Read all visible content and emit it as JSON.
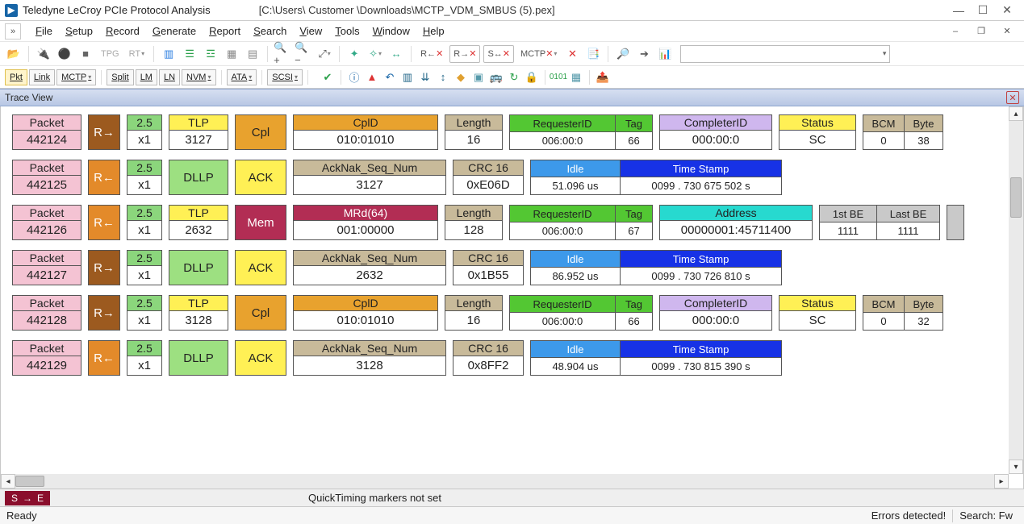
{
  "window": {
    "app_title": "Teledyne LeCroy PCIe Protocol Analysis",
    "file_path": "[C:\\Users\\ Customer \\Downloads\\MCTP_VDM_SMBUS (5).pex]"
  },
  "menus": [
    "File",
    "Setup",
    "Record",
    "Generate",
    "Report",
    "Search",
    "View",
    "Tools",
    "Window",
    "Help"
  ],
  "view_selectors": {
    "group1": [
      "Pkt",
      "Link",
      "MCTP"
    ],
    "group2": [
      "Split",
      "LM",
      "LN",
      "NVM"
    ],
    "group3": [
      "ATA"
    ],
    "group4": [
      "SCSI"
    ]
  },
  "trace_label": "Trace View",
  "colors": {
    "packet_pink": "#f4c3d3",
    "dir_orange": "#e38a2a",
    "dir_brown": "#9c5a1f",
    "gen_green": "#8bd67c",
    "tlp_yellow": "#fff055",
    "dllp_green": "#9de081",
    "ack_yellow": "#fff055",
    "cpl_orange": "#e8a22e",
    "hdr_orange": "#e8a22e",
    "hdr_tan": "#c8ba9a",
    "crc_tan": "#c8ba9a",
    "req_green": "#53c733",
    "tag_green": "#53c733",
    "completer_purple": "#cfb7ee",
    "status_yellow": "#fff055",
    "bcm_tan": "#c8ba9a",
    "idle_blue": "#3d99ea",
    "timestamp_blue": "#1732e6",
    "mem_maroon": "#b22d54",
    "mrd_maroon": "#b22d54",
    "address_teal": "#27d9cf",
    "be_gray": "#c9c9c9"
  },
  "packets": [
    {
      "num": "442124",
      "dir": "R→",
      "dir_color_key": "dir_brown",
      "gen": "2.5",
      "lanes": "x1",
      "ptype": "TLP",
      "ptype_color_key": "tlp_yellow",
      "seq": "3127",
      "cat": "Cpl",
      "cat_color_key": "cpl_orange",
      "fields": [
        {
          "kind": "hv",
          "hdr": "CplD",
          "hdr_color_key": "hdr_orange",
          "val": "010:01010",
          "w": 180
        },
        {
          "kind": "hv",
          "hdr": "Length",
          "hdr_color_key": "hdr_tan",
          "val": "16",
          "w": 72
        },
        {
          "kind": "pair2",
          "h1": "RequesterID",
          "h2": "Tag",
          "c1_key": "req_green",
          "c2_key": "tag_green",
          "v1": "006:00:0",
          "v2": "66",
          "w1": 130,
          "w2": 46
        },
        {
          "kind": "hv",
          "hdr": "CompleterID",
          "hdr_color_key": "completer_purple",
          "val": "000:00:0",
          "w": 140
        },
        {
          "kind": "hv",
          "hdr": "Status",
          "hdr_color_key": "status_yellow",
          "val": "SC",
          "w": 96
        },
        {
          "kind": "pair2",
          "h1": "BCM",
          "h2": "Byte",
          "c1_key": "bcm_tan",
          "c2_key": "bcm_tan",
          "v1": "0",
          "v2": "38",
          "w1": 50,
          "w2": 48
        }
      ]
    },
    {
      "num": "442125",
      "dir": "R←",
      "dir_color_key": "dir_orange",
      "gen": "2.5",
      "lanes": "x1",
      "ptype": "DLLP",
      "ptype_color_key": "dllp_green",
      "cat": "ACK",
      "cat_color_key": "ack_yellow",
      "fields": [
        {
          "kind": "hv",
          "hdr": "AckNak_Seq_Num",
          "hdr_color_key": "hdr_tan",
          "val": "3127",
          "w": 190
        },
        {
          "kind": "hv",
          "hdr": "CRC 16",
          "hdr_color_key": "crc_tan",
          "val": "0xE06D",
          "w": 88
        },
        {
          "kind": "idlets",
          "idle": "51.096 us",
          "ts": "0099 . 730 675 502 s",
          "w_idle": 110,
          "w_ts": 200
        }
      ]
    },
    {
      "num": "442126",
      "dir": "R←",
      "dir_color_key": "dir_orange",
      "gen": "2.5",
      "lanes": "x1",
      "ptype": "TLP",
      "ptype_color_key": "tlp_yellow",
      "seq": "2632",
      "cat": "Mem",
      "cat_color_key": "mem_maroon",
      "cat_text_color": "#ffffff",
      "fields": [
        {
          "kind": "hv",
          "hdr": "MRd(64)",
          "hdr_color_key": "mrd_maroon",
          "hdr_text": "#ffffff",
          "val": "001:00000",
          "w": 180
        },
        {
          "kind": "hv",
          "hdr": "Length",
          "hdr_color_key": "hdr_tan",
          "val": "128",
          "w": 72
        },
        {
          "kind": "pair2",
          "h1": "RequesterID",
          "h2": "Tag",
          "c1_key": "req_green",
          "c2_key": "tag_green",
          "v1": "006:00:0",
          "v2": "67",
          "w1": 130,
          "w2": 46
        },
        {
          "kind": "hv",
          "hdr": "Address",
          "hdr_color_key": "address_teal",
          "val": "00000001:45711400",
          "w": 190
        },
        {
          "kind": "pair2",
          "h1": "1st BE",
          "h2": "Last BE",
          "c1_key": "be_gray",
          "c2_key": "be_gray",
          "v1": "1111",
          "v2": "1111",
          "w1": 70,
          "w2": 78
        },
        {
          "kind": "stub"
        }
      ]
    },
    {
      "num": "442127",
      "dir": "R→",
      "dir_color_key": "dir_brown",
      "gen": "2.5",
      "lanes": "x1",
      "ptype": "DLLP",
      "ptype_color_key": "dllp_green",
      "cat": "ACK",
      "cat_color_key": "ack_yellow",
      "fields": [
        {
          "kind": "hv",
          "hdr": "AckNak_Seq_Num",
          "hdr_color_key": "hdr_tan",
          "val": "2632",
          "w": 190
        },
        {
          "kind": "hv",
          "hdr": "CRC 16",
          "hdr_color_key": "crc_tan",
          "val": "0x1B55",
          "w": 88
        },
        {
          "kind": "idlets",
          "idle": "86.952 us",
          "ts": "0099 . 730 726 810 s",
          "w_idle": 110,
          "w_ts": 200
        }
      ]
    },
    {
      "num": "442128",
      "dir": "R→",
      "dir_color_key": "dir_brown",
      "gen": "2.5",
      "lanes": "x1",
      "ptype": "TLP",
      "ptype_color_key": "tlp_yellow",
      "seq": "3128",
      "cat": "Cpl",
      "cat_color_key": "cpl_orange",
      "fields": [
        {
          "kind": "hv",
          "hdr": "CplD",
          "hdr_color_key": "hdr_orange",
          "val": "010:01010",
          "w": 180
        },
        {
          "kind": "hv",
          "hdr": "Length",
          "hdr_color_key": "hdr_tan",
          "val": "16",
          "w": 72
        },
        {
          "kind": "pair2",
          "h1": "RequesterID",
          "h2": "Tag",
          "c1_key": "req_green",
          "c2_key": "tag_green",
          "v1": "006:00:0",
          "v2": "66",
          "w1": 130,
          "w2": 46
        },
        {
          "kind": "hv",
          "hdr": "CompleterID",
          "hdr_color_key": "completer_purple",
          "val": "000:00:0",
          "w": 140
        },
        {
          "kind": "hv",
          "hdr": "Status",
          "hdr_color_key": "status_yellow",
          "val": "SC",
          "w": 96
        },
        {
          "kind": "pair2",
          "h1": "BCM",
          "h2": "Byte",
          "c1_key": "bcm_tan",
          "c2_key": "bcm_tan",
          "v1": "0",
          "v2": "32",
          "w1": 50,
          "w2": 48
        }
      ]
    },
    {
      "num": "442129",
      "dir": "R←",
      "dir_color_key": "dir_orange",
      "gen": "2.5",
      "lanes": "x1",
      "ptype": "DLLP",
      "ptype_color_key": "dllp_green",
      "cat": "ACK",
      "cat_color_key": "ack_yellow",
      "fields": [
        {
          "kind": "hv",
          "hdr": "AckNak_Seq_Num",
          "hdr_color_key": "hdr_tan",
          "val": "3128",
          "w": 190
        },
        {
          "kind": "hv",
          "hdr": "CRC 16",
          "hdr_color_key": "crc_tan",
          "val": "0x8FF2",
          "w": 88
        },
        {
          "kind": "idlets",
          "idle": "48.904 us",
          "ts": "0099 . 730 815 390 s",
          "w_idle": 110,
          "w_ts": 200
        }
      ]
    }
  ],
  "quickbar": {
    "se_label_s": "S",
    "se_label_e": "E",
    "msg": "QuickTiming markers not set"
  },
  "statusbar": {
    "ready": "Ready",
    "errors": "Errors detected!",
    "search": "Search: Fw"
  },
  "labels": {
    "packet_hdr": "Packet",
    "idle_hdr": "Idle",
    "ts_hdr": "Time Stamp"
  }
}
